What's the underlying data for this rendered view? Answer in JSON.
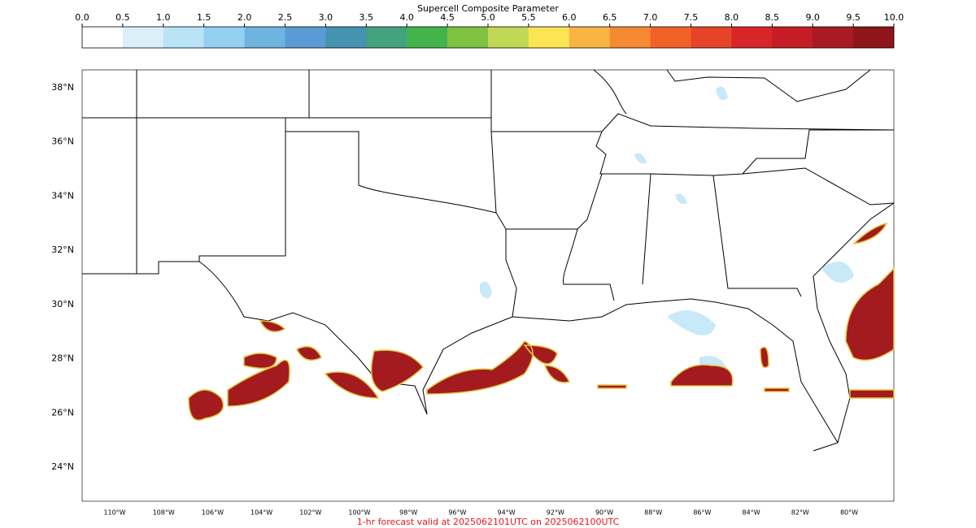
{
  "colorbar": {
    "title": "Supercell Composite Parameter",
    "ticks": [
      "0.0",
      "0.5",
      "1.0",
      "1.5",
      "2.0",
      "2.5",
      "3.0",
      "3.5",
      "4.0",
      "4.5",
      "5.0",
      "5.5",
      "6.0",
      "6.5",
      "7.0",
      "7.5",
      "8.0",
      "8.5",
      "9.0",
      "9.5",
      "10.0"
    ],
    "colors": [
      "#ffffff",
      "#dbeffb",
      "#b9e3f7",
      "#93d0f2",
      "#6fb3e0",
      "#5b9bd5",
      "#4393b1",
      "#43a27f",
      "#45b34c",
      "#7fc241",
      "#c1d856",
      "#fbe552",
      "#f9b443",
      "#f68a33",
      "#f26228",
      "#e64429",
      "#d82528",
      "#c41d25",
      "#a81b22",
      "#8e1519"
    ]
  },
  "map": {
    "lat_labels": [
      "38°N",
      "36°N",
      "34°N",
      "32°N",
      "30°N",
      "28°N",
      "26°N",
      "24°N"
    ],
    "lon_labels": [
      "110°W",
      "108°W",
      "106°W",
      "104°W",
      "102°W",
      "100°W",
      "98°W",
      "96°W",
      "94°W",
      "92°W",
      "90°W",
      "88°W",
      "86°W",
      "84°W",
      "82°W",
      "80°W"
    ]
  },
  "footer": "1-hr forecast valid at 2025062101UTC on 2025062100UTC"
}
